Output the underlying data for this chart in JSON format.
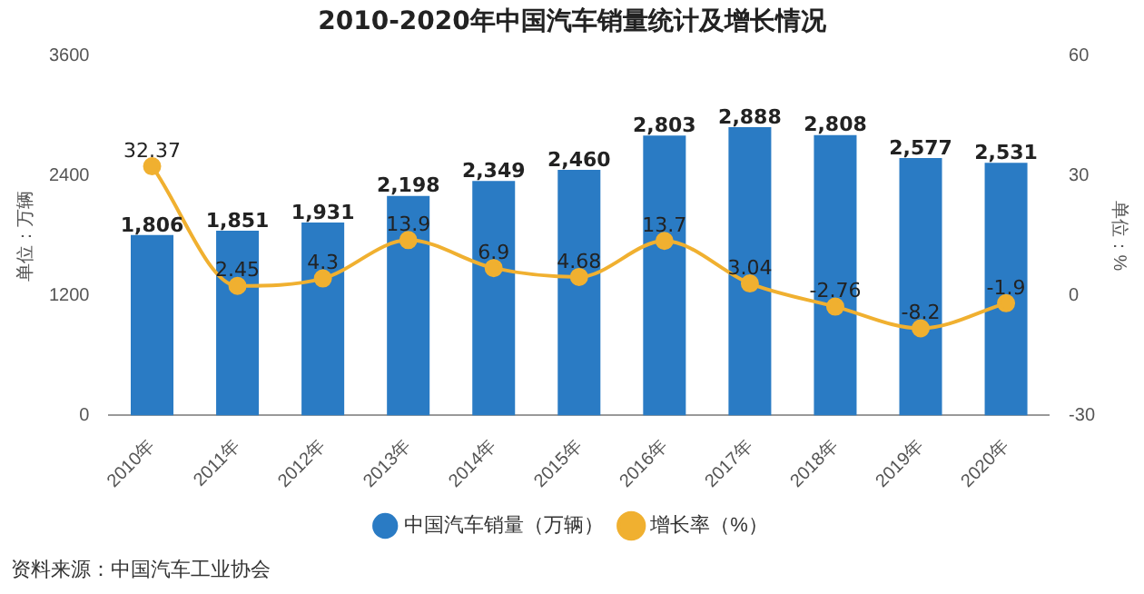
{
  "chart_data": {
    "type": "bar",
    "title": "2010-2020年中国汽车销量统计及增长情况",
    "categories": [
      "2010年",
      "2011年",
      "2012年",
      "2013年",
      "2014年",
      "2015年",
      "2016年",
      "2017年",
      "2018年",
      "2019年",
      "2020年"
    ],
    "series": [
      {
        "name": "中国汽车销量（万辆）",
        "color": "#2a7bc4",
        "values": [
          1806,
          1851,
          1931,
          2198,
          2349,
          2460,
          2803,
          2888,
          2808,
          2577,
          2531
        ],
        "value_labels": [
          "1,806",
          "1,851",
          "1,931",
          "2,198",
          "2,349",
          "2,460",
          "2,803",
          "2,888",
          "2,808",
          "2,577",
          "2,531"
        ]
      },
      {
        "name": "增长率（%）",
        "type": "line",
        "axis": "y2",
        "color": "#f0b030",
        "values": [
          32.37,
          2.45,
          4.3,
          13.9,
          6.9,
          4.68,
          13.7,
          3.04,
          -2.76,
          -8.2,
          -1.9
        ],
        "value_labels": [
          "32.37",
          "2.45",
          "4.3",
          "13.9",
          "6.9",
          "4.68",
          "13.7",
          "3.04",
          "-2.76",
          "-8.2",
          "-1.9"
        ]
      }
    ],
    "ylabel": "单位：万辆",
    "y2label": "单位：%",
    "ylim": [
      0,
      3600
    ],
    "yticks": [
      0,
      1200,
      2400,
      3600
    ],
    "y2lim": [
      -30,
      60
    ],
    "y2ticks": [
      -30,
      0,
      30,
      60
    ],
    "grid": false,
    "legend": "bottom",
    "marker": "circle",
    "annotations": [
      "资料来源：中国汽车工业协会"
    ]
  }
}
